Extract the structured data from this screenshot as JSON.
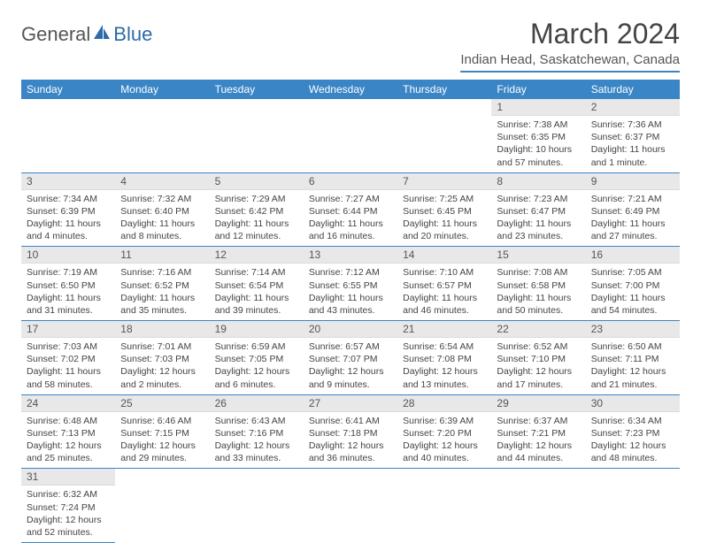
{
  "logo": {
    "part1": "General",
    "part2": "Blue"
  },
  "title": "March 2024",
  "location": "Indian Head, Saskatchewan, Canada",
  "colors": {
    "header_bg": "#3a85c6",
    "header_text": "#ffffff",
    "daynum_bg": "#e8e8e8",
    "border": "#3a85c6",
    "text": "#444444"
  },
  "weekdays": [
    "Sunday",
    "Monday",
    "Tuesday",
    "Wednesday",
    "Thursday",
    "Friday",
    "Saturday"
  ],
  "weeks": [
    [
      null,
      null,
      null,
      null,
      null,
      {
        "n": "1",
        "sunrise": "Sunrise: 7:38 AM",
        "sunset": "Sunset: 6:35 PM",
        "daylight": "Daylight: 10 hours and 57 minutes."
      },
      {
        "n": "2",
        "sunrise": "Sunrise: 7:36 AM",
        "sunset": "Sunset: 6:37 PM",
        "daylight": "Daylight: 11 hours and 1 minute."
      }
    ],
    [
      {
        "n": "3",
        "sunrise": "Sunrise: 7:34 AM",
        "sunset": "Sunset: 6:39 PM",
        "daylight": "Daylight: 11 hours and 4 minutes."
      },
      {
        "n": "4",
        "sunrise": "Sunrise: 7:32 AM",
        "sunset": "Sunset: 6:40 PM",
        "daylight": "Daylight: 11 hours and 8 minutes."
      },
      {
        "n": "5",
        "sunrise": "Sunrise: 7:29 AM",
        "sunset": "Sunset: 6:42 PM",
        "daylight": "Daylight: 11 hours and 12 minutes."
      },
      {
        "n": "6",
        "sunrise": "Sunrise: 7:27 AM",
        "sunset": "Sunset: 6:44 PM",
        "daylight": "Daylight: 11 hours and 16 minutes."
      },
      {
        "n": "7",
        "sunrise": "Sunrise: 7:25 AM",
        "sunset": "Sunset: 6:45 PM",
        "daylight": "Daylight: 11 hours and 20 minutes."
      },
      {
        "n": "8",
        "sunrise": "Sunrise: 7:23 AM",
        "sunset": "Sunset: 6:47 PM",
        "daylight": "Daylight: 11 hours and 23 minutes."
      },
      {
        "n": "9",
        "sunrise": "Sunrise: 7:21 AM",
        "sunset": "Sunset: 6:49 PM",
        "daylight": "Daylight: 11 hours and 27 minutes."
      }
    ],
    [
      {
        "n": "10",
        "sunrise": "Sunrise: 7:19 AM",
        "sunset": "Sunset: 6:50 PM",
        "daylight": "Daylight: 11 hours and 31 minutes."
      },
      {
        "n": "11",
        "sunrise": "Sunrise: 7:16 AM",
        "sunset": "Sunset: 6:52 PM",
        "daylight": "Daylight: 11 hours and 35 minutes."
      },
      {
        "n": "12",
        "sunrise": "Sunrise: 7:14 AM",
        "sunset": "Sunset: 6:54 PM",
        "daylight": "Daylight: 11 hours and 39 minutes."
      },
      {
        "n": "13",
        "sunrise": "Sunrise: 7:12 AM",
        "sunset": "Sunset: 6:55 PM",
        "daylight": "Daylight: 11 hours and 43 minutes."
      },
      {
        "n": "14",
        "sunrise": "Sunrise: 7:10 AM",
        "sunset": "Sunset: 6:57 PM",
        "daylight": "Daylight: 11 hours and 46 minutes."
      },
      {
        "n": "15",
        "sunrise": "Sunrise: 7:08 AM",
        "sunset": "Sunset: 6:58 PM",
        "daylight": "Daylight: 11 hours and 50 minutes."
      },
      {
        "n": "16",
        "sunrise": "Sunrise: 7:05 AM",
        "sunset": "Sunset: 7:00 PM",
        "daylight": "Daylight: 11 hours and 54 minutes."
      }
    ],
    [
      {
        "n": "17",
        "sunrise": "Sunrise: 7:03 AM",
        "sunset": "Sunset: 7:02 PM",
        "daylight": "Daylight: 11 hours and 58 minutes."
      },
      {
        "n": "18",
        "sunrise": "Sunrise: 7:01 AM",
        "sunset": "Sunset: 7:03 PM",
        "daylight": "Daylight: 12 hours and 2 minutes."
      },
      {
        "n": "19",
        "sunrise": "Sunrise: 6:59 AM",
        "sunset": "Sunset: 7:05 PM",
        "daylight": "Daylight: 12 hours and 6 minutes."
      },
      {
        "n": "20",
        "sunrise": "Sunrise: 6:57 AM",
        "sunset": "Sunset: 7:07 PM",
        "daylight": "Daylight: 12 hours and 9 minutes."
      },
      {
        "n": "21",
        "sunrise": "Sunrise: 6:54 AM",
        "sunset": "Sunset: 7:08 PM",
        "daylight": "Daylight: 12 hours and 13 minutes."
      },
      {
        "n": "22",
        "sunrise": "Sunrise: 6:52 AM",
        "sunset": "Sunset: 7:10 PM",
        "daylight": "Daylight: 12 hours and 17 minutes."
      },
      {
        "n": "23",
        "sunrise": "Sunrise: 6:50 AM",
        "sunset": "Sunset: 7:11 PM",
        "daylight": "Daylight: 12 hours and 21 minutes."
      }
    ],
    [
      {
        "n": "24",
        "sunrise": "Sunrise: 6:48 AM",
        "sunset": "Sunset: 7:13 PM",
        "daylight": "Daylight: 12 hours and 25 minutes."
      },
      {
        "n": "25",
        "sunrise": "Sunrise: 6:46 AM",
        "sunset": "Sunset: 7:15 PM",
        "daylight": "Daylight: 12 hours and 29 minutes."
      },
      {
        "n": "26",
        "sunrise": "Sunrise: 6:43 AM",
        "sunset": "Sunset: 7:16 PM",
        "daylight": "Daylight: 12 hours and 33 minutes."
      },
      {
        "n": "27",
        "sunrise": "Sunrise: 6:41 AM",
        "sunset": "Sunset: 7:18 PM",
        "daylight": "Daylight: 12 hours and 36 minutes."
      },
      {
        "n": "28",
        "sunrise": "Sunrise: 6:39 AM",
        "sunset": "Sunset: 7:20 PM",
        "daylight": "Daylight: 12 hours and 40 minutes."
      },
      {
        "n": "29",
        "sunrise": "Sunrise: 6:37 AM",
        "sunset": "Sunset: 7:21 PM",
        "daylight": "Daylight: 12 hours and 44 minutes."
      },
      {
        "n": "30",
        "sunrise": "Sunrise: 6:34 AM",
        "sunset": "Sunset: 7:23 PM",
        "daylight": "Daylight: 12 hours and 48 minutes."
      }
    ],
    [
      {
        "n": "31",
        "sunrise": "Sunrise: 6:32 AM",
        "sunset": "Sunset: 7:24 PM",
        "daylight": "Daylight: 12 hours and 52 minutes."
      },
      null,
      null,
      null,
      null,
      null,
      null
    ]
  ]
}
